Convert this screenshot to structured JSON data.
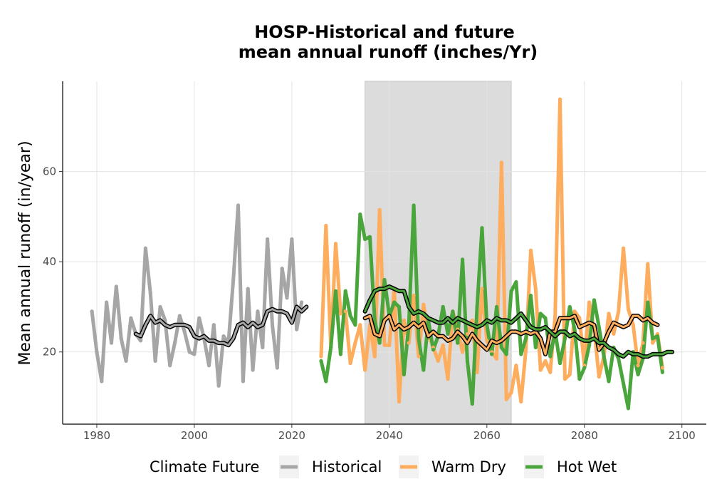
{
  "chart_data": {
    "type": "line",
    "title_line1": "HOSP-Historical and future",
    "title_line2": "mean annual runoff (inches/Yr)",
    "xlabel": "",
    "ylabel": "Mean annual runoff (in/year)",
    "xlim": [
      1973,
      2105
    ],
    "ylim": [
      4,
      80
    ],
    "x_ticks": [
      1980,
      2000,
      2020,
      2040,
      2060,
      2080,
      2100
    ],
    "y_ticks": [
      20,
      40,
      60
    ],
    "grid": true,
    "shaded_period": [
      2035,
      2065
    ],
    "shaded_color": "#dcdcdc",
    "legend": {
      "title": "Climate Future",
      "position": "bottom",
      "entries": [
        "Historical",
        "Warm Dry",
        "Hot Wet"
      ]
    },
    "series": [
      {
        "name": "Historical",
        "color": "#a6a6a6",
        "x_start": 1979,
        "values": [
          29,
          20,
          13.5,
          31,
          22,
          34.5,
          23,
          18,
          27.5,
          24,
          22.5,
          43,
          33,
          18,
          30,
          27,
          17,
          22,
          28,
          24.5,
          20,
          19.5,
          27.5,
          23,
          17,
          26,
          12.5,
          23.5,
          22,
          36,
          52.5,
          13.5,
          34,
          16,
          29,
          21,
          45,
          26,
          16.5,
          38.5,
          32,
          45,
          25,
          31
        ]
      },
      {
        "name": "Historical (rolling mean)",
        "color": "#000000",
        "x_start": 1988,
        "values": [
          24,
          23.5,
          26,
          28,
          26.5,
          27,
          26,
          25.5,
          26,
          26,
          26,
          25.5,
          23.5,
          23,
          23.5,
          22.5,
          22.5,
          22,
          22,
          21.5,
          23,
          26,
          26.5,
          25.5,
          26.5,
          25.5,
          26,
          29,
          29.5,
          29,
          29,
          28.5,
          26.5,
          30,
          29,
          30
        ]
      },
      {
        "name": "Warm Dry",
        "color": "#fdad5d",
        "x_start": 2026,
        "values": [
          19,
          48,
          21,
          44,
          28.5,
          29,
          17.5,
          22,
          26,
          16,
          26,
          19,
          51.5,
          21.5,
          21.5,
          34,
          9,
          27,
          22,
          32.5,
          19,
          30.5,
          24,
          21,
          18,
          21.5,
          14,
          29,
          25,
          20,
          24,
          27,
          15.5,
          34,
          22.5,
          20,
          18.5,
          62,
          9.5,
          11,
          17,
          9,
          20.5,
          42.5,
          34,
          16,
          18,
          15.5,
          28,
          76,
          14,
          15,
          29,
          27.5,
          17,
          31,
          25,
          14.5,
          19,
          28.5,
          24,
          29,
          43,
          29.5,
          26,
          17,
          22,
          39.5,
          22,
          24,
          16.5
        ]
      },
      {
        "name": "Warm Dry (rolling mean)",
        "color": "#000000",
        "x_start": 2035,
        "values": [
          27.5,
          28,
          24,
          23.5,
          27,
          28,
          25,
          26,
          25,
          25.5,
          26.5,
          25.5,
          26.5,
          23.5,
          24.5,
          23.5,
          23.5,
          22.5,
          23,
          24.5,
          23.5,
          22,
          24,
          22.5,
          21.5,
          20.5,
          22.5,
          22,
          22.5,
          23.5,
          24.5,
          24.5,
          24,
          24.5,
          24,
          24.5,
          23,
          19.5,
          24.5,
          24.5,
          27.5,
          27.5,
          27.5,
          28,
          25.5,
          26,
          26.5,
          26,
          20.5,
          22,
          24.5,
          26.5,
          26,
          25.5,
          26,
          28,
          28,
          27,
          27.5,
          26.5,
          26
        ]
      },
      {
        "name": "Hot Wet",
        "color": "#4aa63c",
        "x_start": 2026,
        "values": [
          18,
          13.5,
          21,
          33.5,
          19.5,
          33.5,
          28,
          26,
          50.5,
          45,
          45.5,
          27,
          22,
          36,
          28,
          31,
          30,
          15,
          26,
          52.5,
          23,
          16,
          27,
          20.5,
          23.5,
          30,
          24,
          29,
          22,
          40.5,
          18,
          8.5,
          30,
          47.5,
          26,
          19.5,
          30,
          21,
          19.5,
          33.5,
          35.5,
          19.5,
          23,
          32.5,
          21,
          28.5,
          27.5,
          19,
          24.5,
          17.5,
          23,
          30,
          25,
          14,
          16.5,
          21.5,
          31.5,
          25.5,
          19,
          13.5,
          21,
          18.5,
          13,
          7.5,
          20,
          15,
          18.5,
          31,
          23,
          23.5,
          15.5
        ]
      },
      {
        "name": "Hot Wet (rolling mean)",
        "color": "#000000",
        "x_start": 2035,
        "values": [
          29,
          31.5,
          33.5,
          34,
          34,
          34.5,
          34,
          33.5,
          33.5,
          30,
          28.5,
          29,
          28.5,
          27.5,
          27,
          26.5,
          26.5,
          27.5,
          26.5,
          27.5,
          27,
          26.5,
          26,
          25.5,
          26,
          27,
          26.5,
          27.5,
          27,
          27,
          26.5,
          27.5,
          28.5,
          27,
          25.5,
          25,
          25,
          25.5,
          24.5,
          23.5,
          24.5,
          24.5,
          23.5,
          24,
          23,
          22.5,
          22.5,
          23,
          22,
          22,
          21,
          20.5,
          19.5,
          19,
          20,
          19.5,
          19.5,
          19,
          19,
          19.5,
          19.5,
          19.5,
          20,
          20
        ]
      }
    ]
  }
}
